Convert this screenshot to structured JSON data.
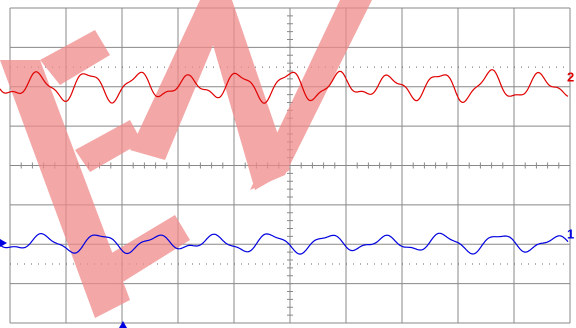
{
  "channels": [
    {
      "label": "2",
      "color": "#e00000"
    },
    {
      "label": "1",
      "color": "#0000e0"
    }
  ]
}
